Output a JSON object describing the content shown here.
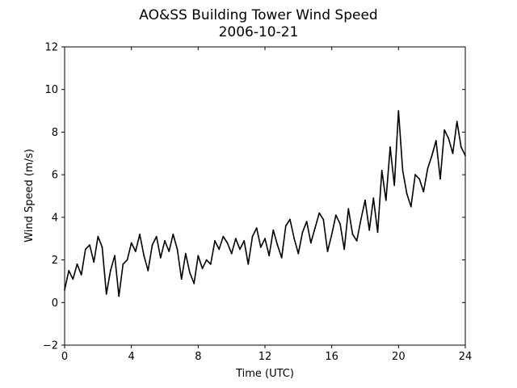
{
  "chart_data": {
    "type": "line",
    "title": "AO&SS Building Tower Wind Speed",
    "subtitle": "2006-10-21",
    "xlabel": "Time (UTC)",
    "ylabel": "Wind Speed (m/s)",
    "xlim": [
      0,
      24
    ],
    "ylim": [
      -2,
      12
    ],
    "xticks": [
      0,
      4,
      8,
      12,
      16,
      20,
      24
    ],
    "yticks": [
      -2,
      0,
      2,
      4,
      6,
      8,
      10,
      12
    ],
    "xtick_labels": [
      "0",
      "4",
      "8",
      "12",
      "16",
      "20",
      "24"
    ],
    "ytick_labels": [
      "−2",
      "0",
      "2",
      "4",
      "6",
      "8",
      "10",
      "12"
    ],
    "grid": false,
    "line_color": "#000000",
    "series": [
      {
        "x": [
          0.0,
          0.25,
          0.5,
          0.75,
          1.0,
          1.25,
          1.5,
          1.75,
          2.0,
          2.25,
          2.5,
          2.75,
          3.0,
          3.25,
          3.5,
          3.75,
          4.0,
          4.25,
          4.5,
          4.75,
          5.0,
          5.25,
          5.5,
          5.75,
          6.0,
          6.25,
          6.5,
          6.75,
          7.0,
          7.25,
          7.5,
          7.75,
          8.0,
          8.25,
          8.5,
          8.75,
          9.0,
          9.25,
          9.5,
          9.75,
          10.0,
          10.25,
          10.5,
          10.75,
          11.0,
          11.25,
          11.5,
          11.75,
          12.0,
          12.25,
          12.5,
          12.75,
          13.0,
          13.25,
          13.5,
          13.75,
          14.0,
          14.25,
          14.5,
          14.75,
          15.0,
          15.25,
          15.5,
          15.75,
          16.0,
          16.25,
          16.5,
          16.75,
          17.0,
          17.25,
          17.5,
          17.75,
          18.0,
          18.25,
          18.5,
          18.75,
          19.0,
          19.25,
          19.5,
          19.75,
          20.0,
          20.25,
          20.5,
          20.75,
          21.0,
          21.25,
          21.5,
          21.75,
          22.0,
          22.25,
          22.5,
          22.75,
          23.0,
          23.25,
          23.5,
          23.75,
          24.0
        ],
        "y": [
          0.6,
          1.5,
          1.1,
          1.8,
          1.3,
          2.5,
          2.7,
          1.9,
          3.1,
          2.6,
          0.4,
          1.5,
          2.2,
          0.3,
          1.8,
          2.0,
          2.8,
          2.4,
          3.2,
          2.2,
          1.5,
          2.7,
          3.1,
          2.1,
          2.9,
          2.4,
          3.2,
          2.5,
          1.1,
          2.3,
          1.4,
          0.9,
          2.2,
          1.6,
          2.0,
          1.8,
          2.9,
          2.5,
          3.1,
          2.8,
          2.3,
          3.0,
          2.5,
          2.9,
          1.8,
          3.1,
          3.5,
          2.6,
          3.0,
          2.2,
          3.4,
          2.7,
          2.1,
          3.6,
          3.9,
          3.0,
          2.3,
          3.3,
          3.8,
          2.8,
          3.5,
          4.2,
          3.9,
          2.4,
          3.2,
          4.1,
          3.7,
          2.5,
          4.4,
          3.2,
          2.9,
          3.9,
          4.8,
          3.4,
          4.9,
          3.3,
          6.2,
          4.8,
          7.3,
          5.5,
          9.0,
          6.2,
          5.1,
          4.5,
          6.0,
          5.8,
          5.2,
          6.3,
          6.9,
          7.6,
          5.8,
          8.1,
          7.7,
          7.0,
          8.5,
          7.3,
          6.9
        ]
      }
    ]
  }
}
